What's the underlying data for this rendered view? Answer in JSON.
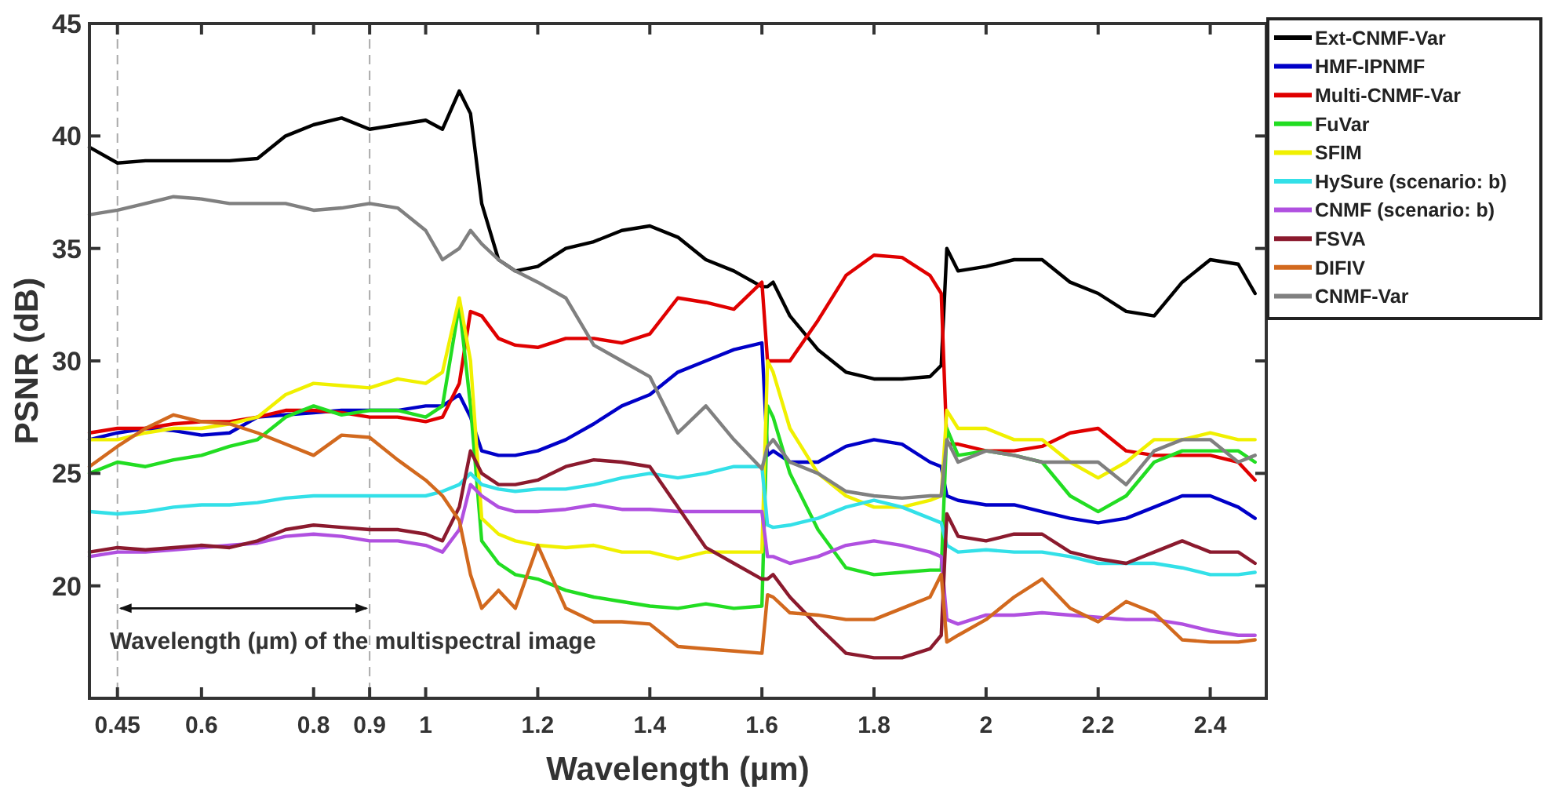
{
  "chart_data": {
    "type": "line",
    "xlabel": "Wavelength (µm)",
    "ylabel": "PSNR (dB)",
    "xlim": [
      0.4,
      2.5
    ],
    "ylim": [
      15,
      45
    ],
    "xticks": [
      0.45,
      0.6,
      0.8,
      0.9,
      1,
      1.2,
      1.4,
      1.6,
      1.8,
      2,
      2.2,
      2.4
    ],
    "yticks": [
      20,
      25,
      30,
      35,
      40,
      45
    ],
    "grid": false,
    "legend": "top right",
    "marker": "none",
    "line_style": "solid",
    "x": [
      0.4,
      0.45,
      0.5,
      0.55,
      0.6,
      0.65,
      0.7,
      0.75,
      0.8,
      0.85,
      0.9,
      0.95,
      1.0,
      1.03,
      1.06,
      1.08,
      1.1,
      1.13,
      1.16,
      1.2,
      1.25,
      1.3,
      1.35,
      1.4,
      1.45,
      1.5,
      1.55,
      1.6,
      1.61,
      1.62,
      1.65,
      1.7,
      1.75,
      1.8,
      1.85,
      1.9,
      1.92,
      1.93,
      1.95,
      2.0,
      2.05,
      2.1,
      2.15,
      2.2,
      2.25,
      2.3,
      2.35,
      2.4,
      2.45,
      2.48
    ],
    "series": [
      {
        "name": "Ext-CNMF-Var",
        "color": "#000000",
        "values": [
          39.5,
          38.8,
          38.9,
          38.9,
          38.9,
          38.9,
          39,
          40,
          40.5,
          40.8,
          40.3,
          40.5,
          40.7,
          40.3,
          42,
          41,
          37,
          34.5,
          34,
          34.2,
          35,
          35.3,
          35.8,
          36,
          35.5,
          34.5,
          34,
          33.3,
          33.3,
          33.5,
          32,
          30.5,
          29.5,
          29.2,
          29.2,
          29.3,
          29.8,
          35,
          34,
          34.2,
          34.5,
          34.5,
          33.5,
          33,
          32.2,
          32,
          33.5,
          34.5,
          34.3,
          33
        ]
      },
      {
        "name": "HMF-IPNMF",
        "color": "#0000c8",
        "values": [
          26.5,
          26.8,
          27,
          26.9,
          26.7,
          26.8,
          27.5,
          27.6,
          27.7,
          27.8,
          27.8,
          27.8,
          28,
          28,
          28.5,
          27.5,
          26,
          25.8,
          25.8,
          26,
          26.5,
          27.2,
          28,
          28.5,
          29.5,
          30,
          30.5,
          30.8,
          25.8,
          26,
          25.5,
          25.5,
          26.2,
          26.5,
          26.3,
          25.5,
          25.3,
          24,
          23.8,
          23.6,
          23.6,
          23.3,
          23,
          22.8,
          23,
          23.5,
          24,
          24,
          23.5,
          23
        ]
      },
      {
        "name": "Multi-CNMF-Var",
        "color": "#e00000",
        "values": [
          26.8,
          27,
          27,
          27.2,
          27.3,
          27.3,
          27.5,
          27.8,
          27.8,
          27.7,
          27.5,
          27.5,
          27.3,
          27.5,
          29,
          32.2,
          32,
          31,
          30.7,
          30.6,
          31,
          31,
          30.8,
          31.2,
          32.8,
          32.6,
          32.3,
          33.5,
          30,
          30,
          30,
          31.8,
          33.8,
          34.7,
          34.6,
          33.8,
          33,
          26.3,
          26.3,
          26,
          26,
          26.2,
          26.8,
          27,
          26,
          25.8,
          25.8,
          25.8,
          25.5,
          24.7
        ]
      },
      {
        "name": "FuVar",
        "color": "#22dd22",
        "values": [
          25,
          25.5,
          25.3,
          25.6,
          25.8,
          26.2,
          26.5,
          27.5,
          28,
          27.6,
          27.8,
          27.8,
          27.5,
          28,
          32.5,
          28,
          22,
          21,
          20.5,
          20.3,
          19.8,
          19.5,
          19.3,
          19.1,
          19,
          19.2,
          19,
          19.1,
          28,
          27.5,
          25,
          22.5,
          20.8,
          20.5,
          20.6,
          20.7,
          20.7,
          27,
          25.8,
          26,
          25.8,
          25.5,
          24,
          23.3,
          24,
          25.5,
          26,
          26,
          26,
          25.5
        ]
      },
      {
        "name": "SFIM",
        "color": "#f0f000",
        "values": [
          26.5,
          26.5,
          26.8,
          27,
          27,
          27.2,
          27.5,
          28.5,
          29,
          28.9,
          28.8,
          29.2,
          29,
          29.5,
          32.8,
          30,
          23,
          22.3,
          22,
          21.8,
          21.7,
          21.8,
          21.5,
          21.5,
          21.2,
          21.5,
          21.5,
          21.5,
          30,
          29.5,
          27,
          25,
          24,
          23.5,
          23.5,
          23.8,
          24,
          27.8,
          27,
          27,
          26.5,
          26.5,
          25.5,
          24.8,
          25.5,
          26.5,
          26.5,
          26.8,
          26.5,
          26.5
        ]
      },
      {
        "name": "HySure (scenario: b)",
        "color": "#33e0e8",
        "values": [
          23.3,
          23.2,
          23.3,
          23.5,
          23.6,
          23.6,
          23.7,
          23.9,
          24,
          24,
          24,
          24,
          24,
          24.2,
          24.5,
          25,
          24.5,
          24.3,
          24.2,
          24.3,
          24.3,
          24.5,
          24.8,
          25,
          24.8,
          25,
          25.3,
          25.3,
          22.7,
          22.6,
          22.7,
          23,
          23.5,
          23.8,
          23.5,
          23,
          22.8,
          21.8,
          21.5,
          21.6,
          21.5,
          21.5,
          21.3,
          21,
          21,
          21,
          20.8,
          20.5,
          20.5,
          20.6
        ]
      },
      {
        "name": "CNMF (scenario: b)",
        "color": "#b050e0",
        "values": [
          21.3,
          21.5,
          21.5,
          21.6,
          21.7,
          21.8,
          21.9,
          22.2,
          22.3,
          22.2,
          22,
          22,
          21.8,
          21.5,
          22.5,
          24.5,
          24,
          23.5,
          23.3,
          23.3,
          23.4,
          23.6,
          23.4,
          23.4,
          23.3,
          23.3,
          23.3,
          23.3,
          21.3,
          21.3,
          21,
          21.3,
          21.8,
          22,
          21.8,
          21.5,
          21.3,
          18.5,
          18.3,
          18.7,
          18.7,
          18.8,
          18.7,
          18.6,
          18.5,
          18.5,
          18.3,
          18,
          17.8,
          17.8
        ]
      },
      {
        "name": "FSVA",
        "color": "#8b1a2e",
        "values": [
          21.5,
          21.7,
          21.6,
          21.7,
          21.8,
          21.7,
          22,
          22.5,
          22.7,
          22.6,
          22.5,
          22.5,
          22.3,
          22,
          23.5,
          26,
          25,
          24.5,
          24.5,
          24.7,
          25.3,
          25.6,
          25.5,
          25.3,
          23.5,
          21.7,
          21,
          20.3,
          20.3,
          20.5,
          19.5,
          18.2,
          17,
          16.8,
          16.8,
          17.2,
          17.8,
          23.2,
          22.2,
          22,
          22.3,
          22.3,
          21.5,
          21.2,
          21,
          21.5,
          22,
          21.5,
          21.5,
          21
        ]
      },
      {
        "name": "DIFIV",
        "color": "#d2691e",
        "values": [
          25.3,
          26.2,
          27,
          27.6,
          27.3,
          27.2,
          26.8,
          26.3,
          25.8,
          26.7,
          26.6,
          25.6,
          24.7,
          24,
          22.9,
          20.5,
          19,
          19.8,
          19,
          21.8,
          19,
          18.4,
          18.4,
          18.3,
          17.3,
          17.2,
          17.1,
          17,
          19.6,
          19.5,
          18.8,
          18.7,
          18.5,
          18.5,
          19,
          19.5,
          20.5,
          17.5,
          17.8,
          18.5,
          19.5,
          20.3,
          19,
          18.4,
          19.3,
          18.8,
          17.6,
          17.5,
          17.5,
          17.6
        ]
      },
      {
        "name": "CNMF-Var",
        "color": "#808080",
        "values": [
          36.5,
          36.7,
          37,
          37.3,
          37.2,
          37,
          37,
          37,
          36.7,
          36.8,
          37,
          36.8,
          35.8,
          34.5,
          35,
          35.8,
          35.2,
          34.5,
          34,
          33.5,
          32.8,
          30.7,
          30,
          29.3,
          26.8,
          28,
          26.5,
          25.2,
          26.2,
          26.5,
          25.5,
          25,
          24.2,
          24,
          23.9,
          24,
          24,
          26.5,
          25.5,
          26,
          25.8,
          25.5,
          25.5,
          25.5,
          24.5,
          26,
          26.5,
          26.5,
          25.5,
          25.8
        ]
      }
    ],
    "ref_lines": [
      {
        "axis": "x",
        "value": 0.45,
        "color": "#aaaaaa",
        "line_style": "dashed"
      },
      {
        "axis": "x",
        "value": 0.9,
        "color": "#aaaaaa",
        "line_style": "dashed"
      }
    ],
    "annotations": [
      "Wavelength (µm) of the multispectral image"
    ]
  }
}
